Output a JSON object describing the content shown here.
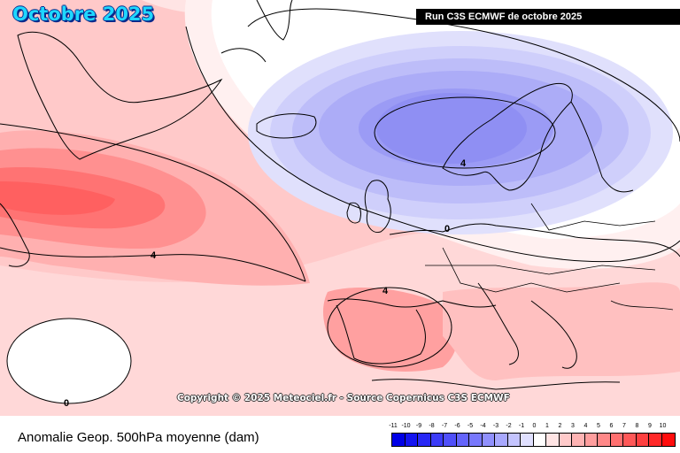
{
  "title": "Octobre 2025",
  "run_label": "Run C3S ECMWF de octobre 2025",
  "copyright": "Copyright © 2025 Meteociel.fr - Source Copernicus C3S ECMWF",
  "footer_label": "Anomalie Geop. 500hPa moyenne (dam)",
  "legend": {
    "values": [
      "-11",
      "-10",
      "-9",
      "-8",
      "-7",
      "-6",
      "-5",
      "-4",
      "-3",
      "-2",
      "-1",
      "0",
      "1",
      "2",
      "3",
      "4",
      "5",
      "6",
      "7",
      "8",
      "9",
      "10"
    ],
    "colors": [
      "#0000e6",
      "#1414f0",
      "#2828f5",
      "#3c3cf8",
      "#5050fa",
      "#6464fb",
      "#7878fc",
      "#9090fd",
      "#a8a8fe",
      "#c4c4fe",
      "#e0e0ff",
      "#ffffff",
      "#ffe4e4",
      "#ffcaca",
      "#ffb4b4",
      "#ff9e9e",
      "#ff8888",
      "#ff7070",
      "#ff5858",
      "#ff4040",
      "#ff2828",
      "#ff0c0c"
    ]
  },
  "contour_labels": [
    "4",
    "4",
    "4",
    "0",
    "0"
  ],
  "colors": {
    "title_fill": "#1fd7ff",
    "title_outline": "#0a2a8c",
    "pos_anomaly": "#ff6b6b",
    "neg_anomaly": "#8f8ff5"
  }
}
